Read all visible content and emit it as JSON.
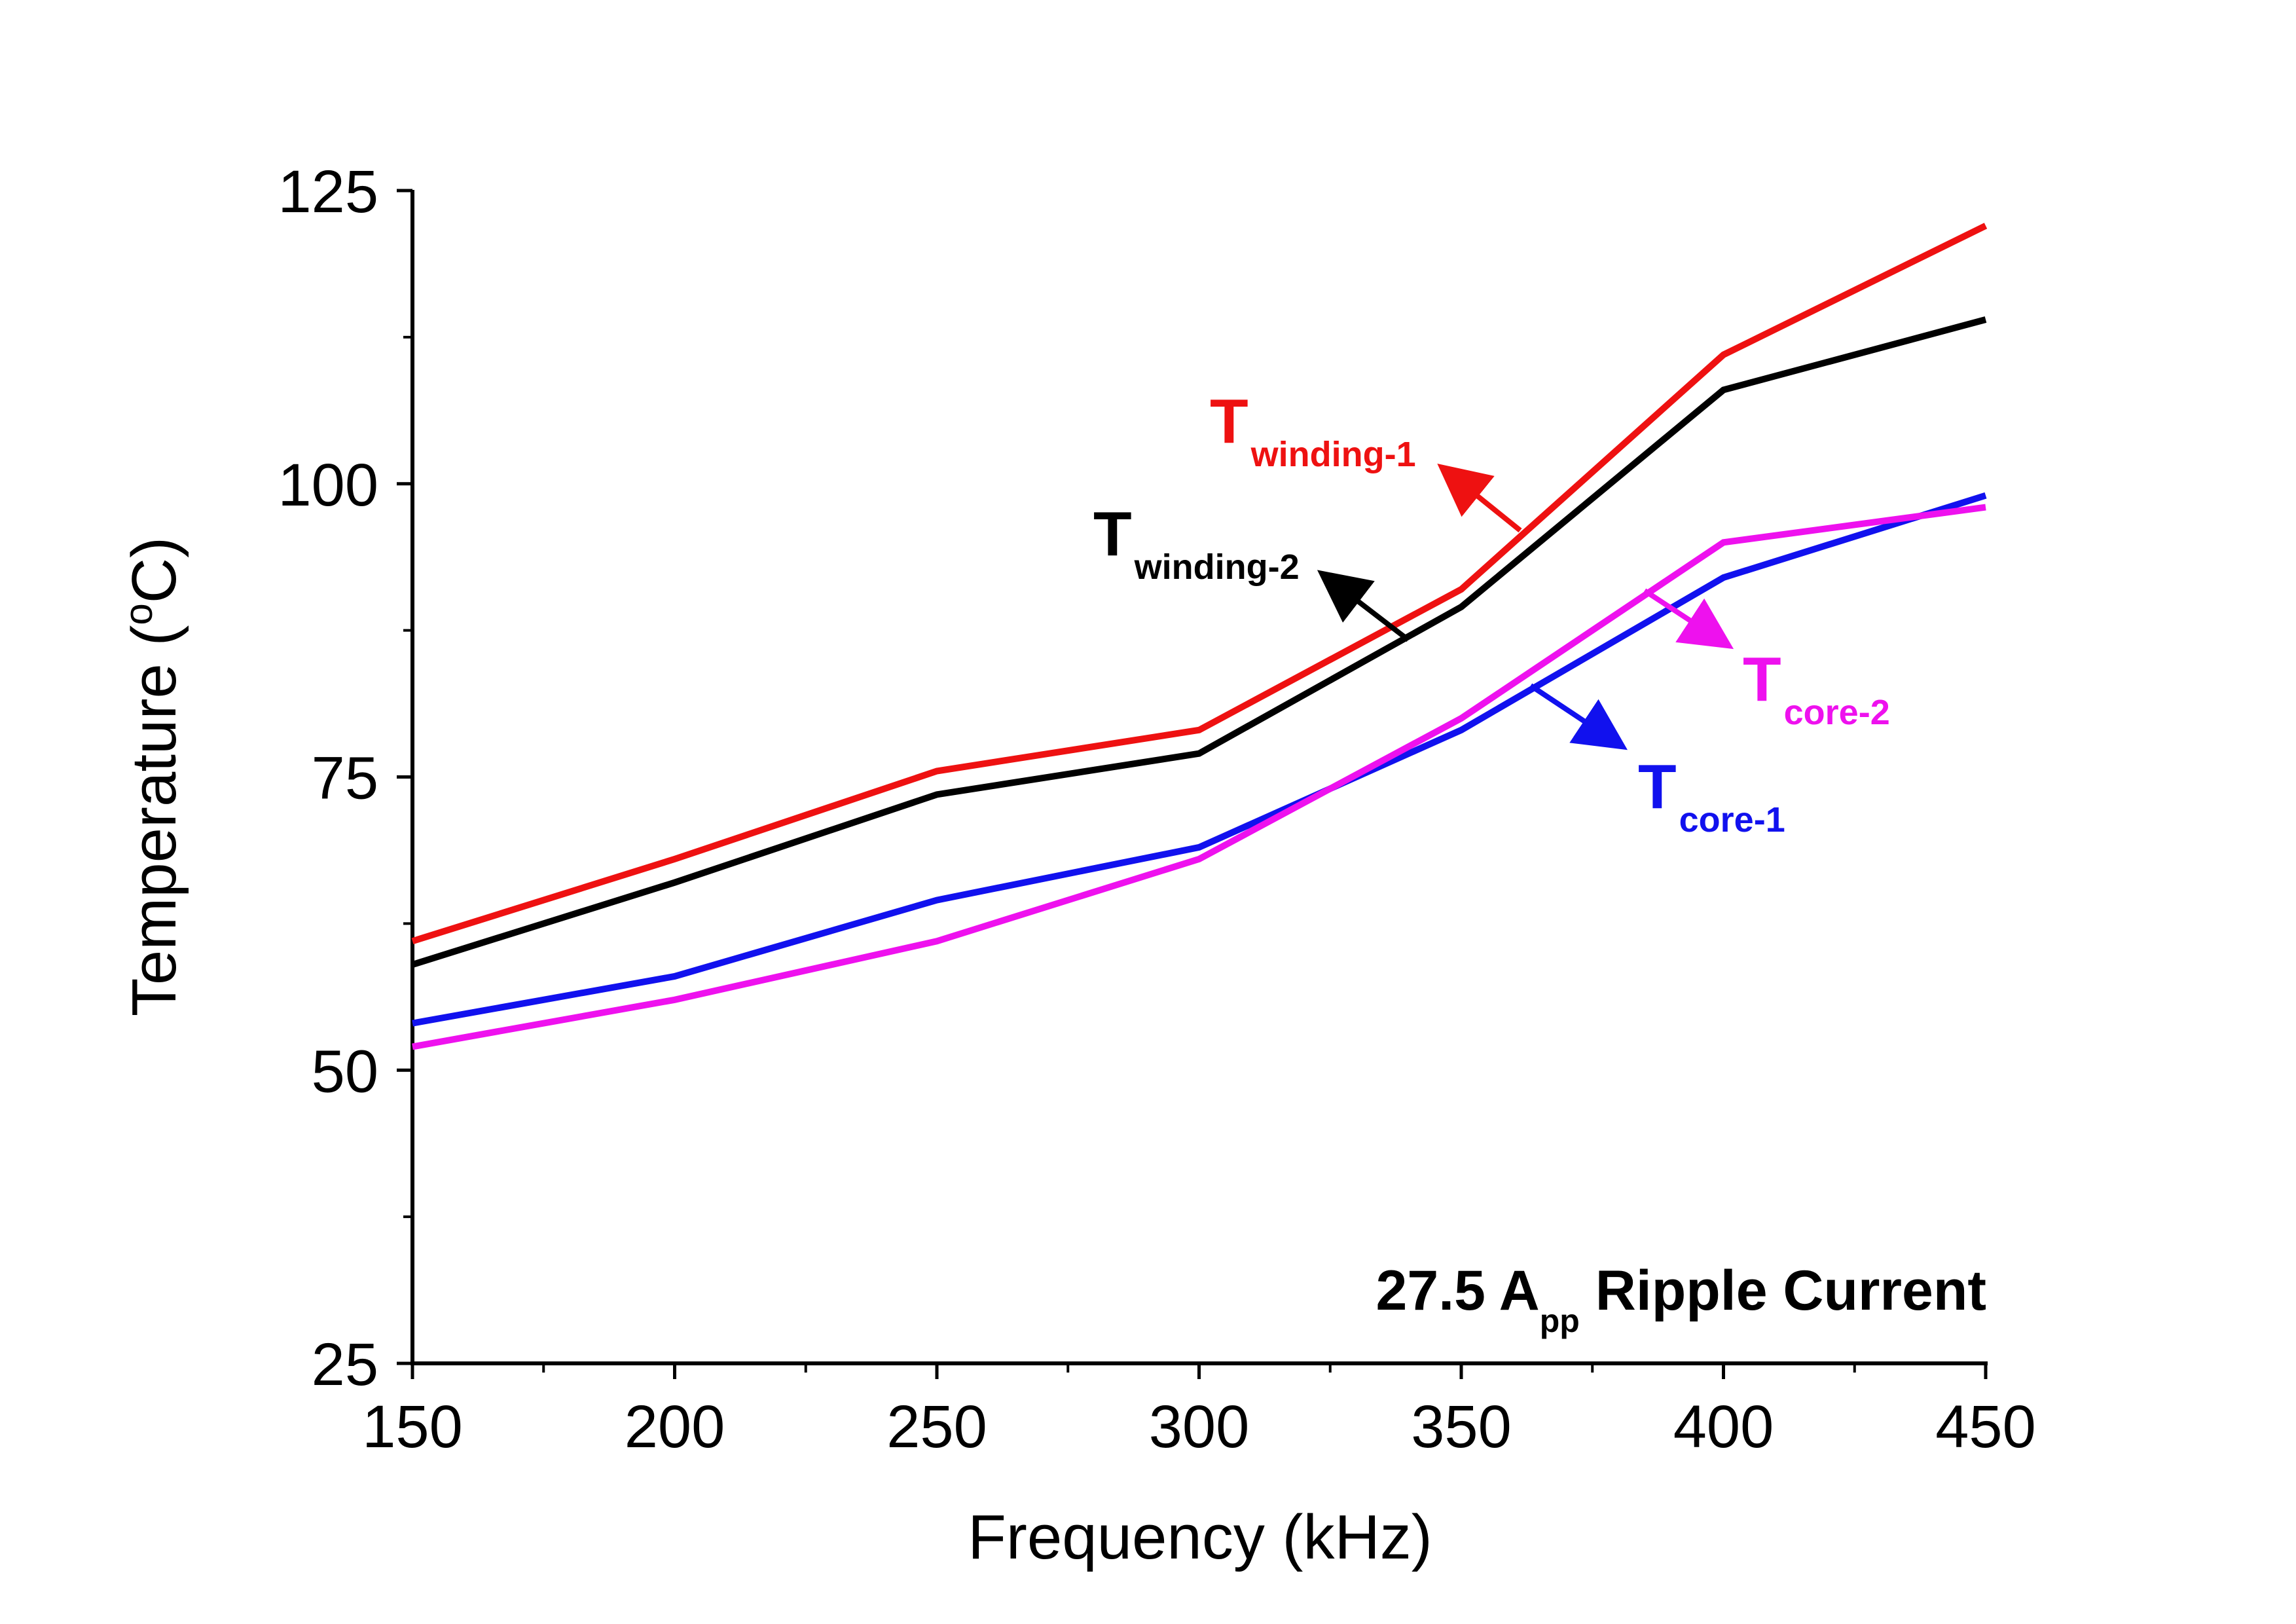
{
  "chart_data": {
    "type": "line",
    "title": "",
    "xlabel": "Frequency (kHz)",
    "ylabel_main": "Temperature (",
    "ylabel_sup": "o",
    "ylabel_end": "C)",
    "xlim": [
      150,
      450
    ],
    "ylim": [
      25,
      125
    ],
    "xticks": [
      150,
      200,
      250,
      300,
      350,
      400,
      450
    ],
    "yticks": [
      25,
      50,
      75,
      100,
      125
    ],
    "x": [
      150,
      200,
      250,
      300,
      350,
      400,
      450
    ],
    "grid": false,
    "legend": "none",
    "annotation": {
      "main": "27.5 A",
      "sub": "pp",
      "rest": " Ripple Current"
    },
    "series": [
      {
        "name": "T winding-1",
        "label_main": "T",
        "label_sub": "winding-1",
        "color": "#ee1111",
        "values": [
          61,
          68,
          75.5,
          79,
          91,
          111,
          122
        ]
      },
      {
        "name": "T winding-2",
        "label_main": "T",
        "label_sub": "winding-2",
        "color": "#000000",
        "values": [
          59,
          66,
          73.5,
          77,
          89.5,
          108,
          114
        ]
      },
      {
        "name": "T core-1",
        "label_main": "T",
        "label_sub": "core-1",
        "color": "#1111ee",
        "values": [
          54,
          58,
          64.5,
          69,
          79,
          92,
          99
        ]
      },
      {
        "name": "T core-2",
        "label_main": "T",
        "label_sub": "core-2",
        "color": "#ee11ee",
        "values": [
          52,
          56,
          61,
          68,
          80,
          95,
          98
        ]
      }
    ]
  }
}
